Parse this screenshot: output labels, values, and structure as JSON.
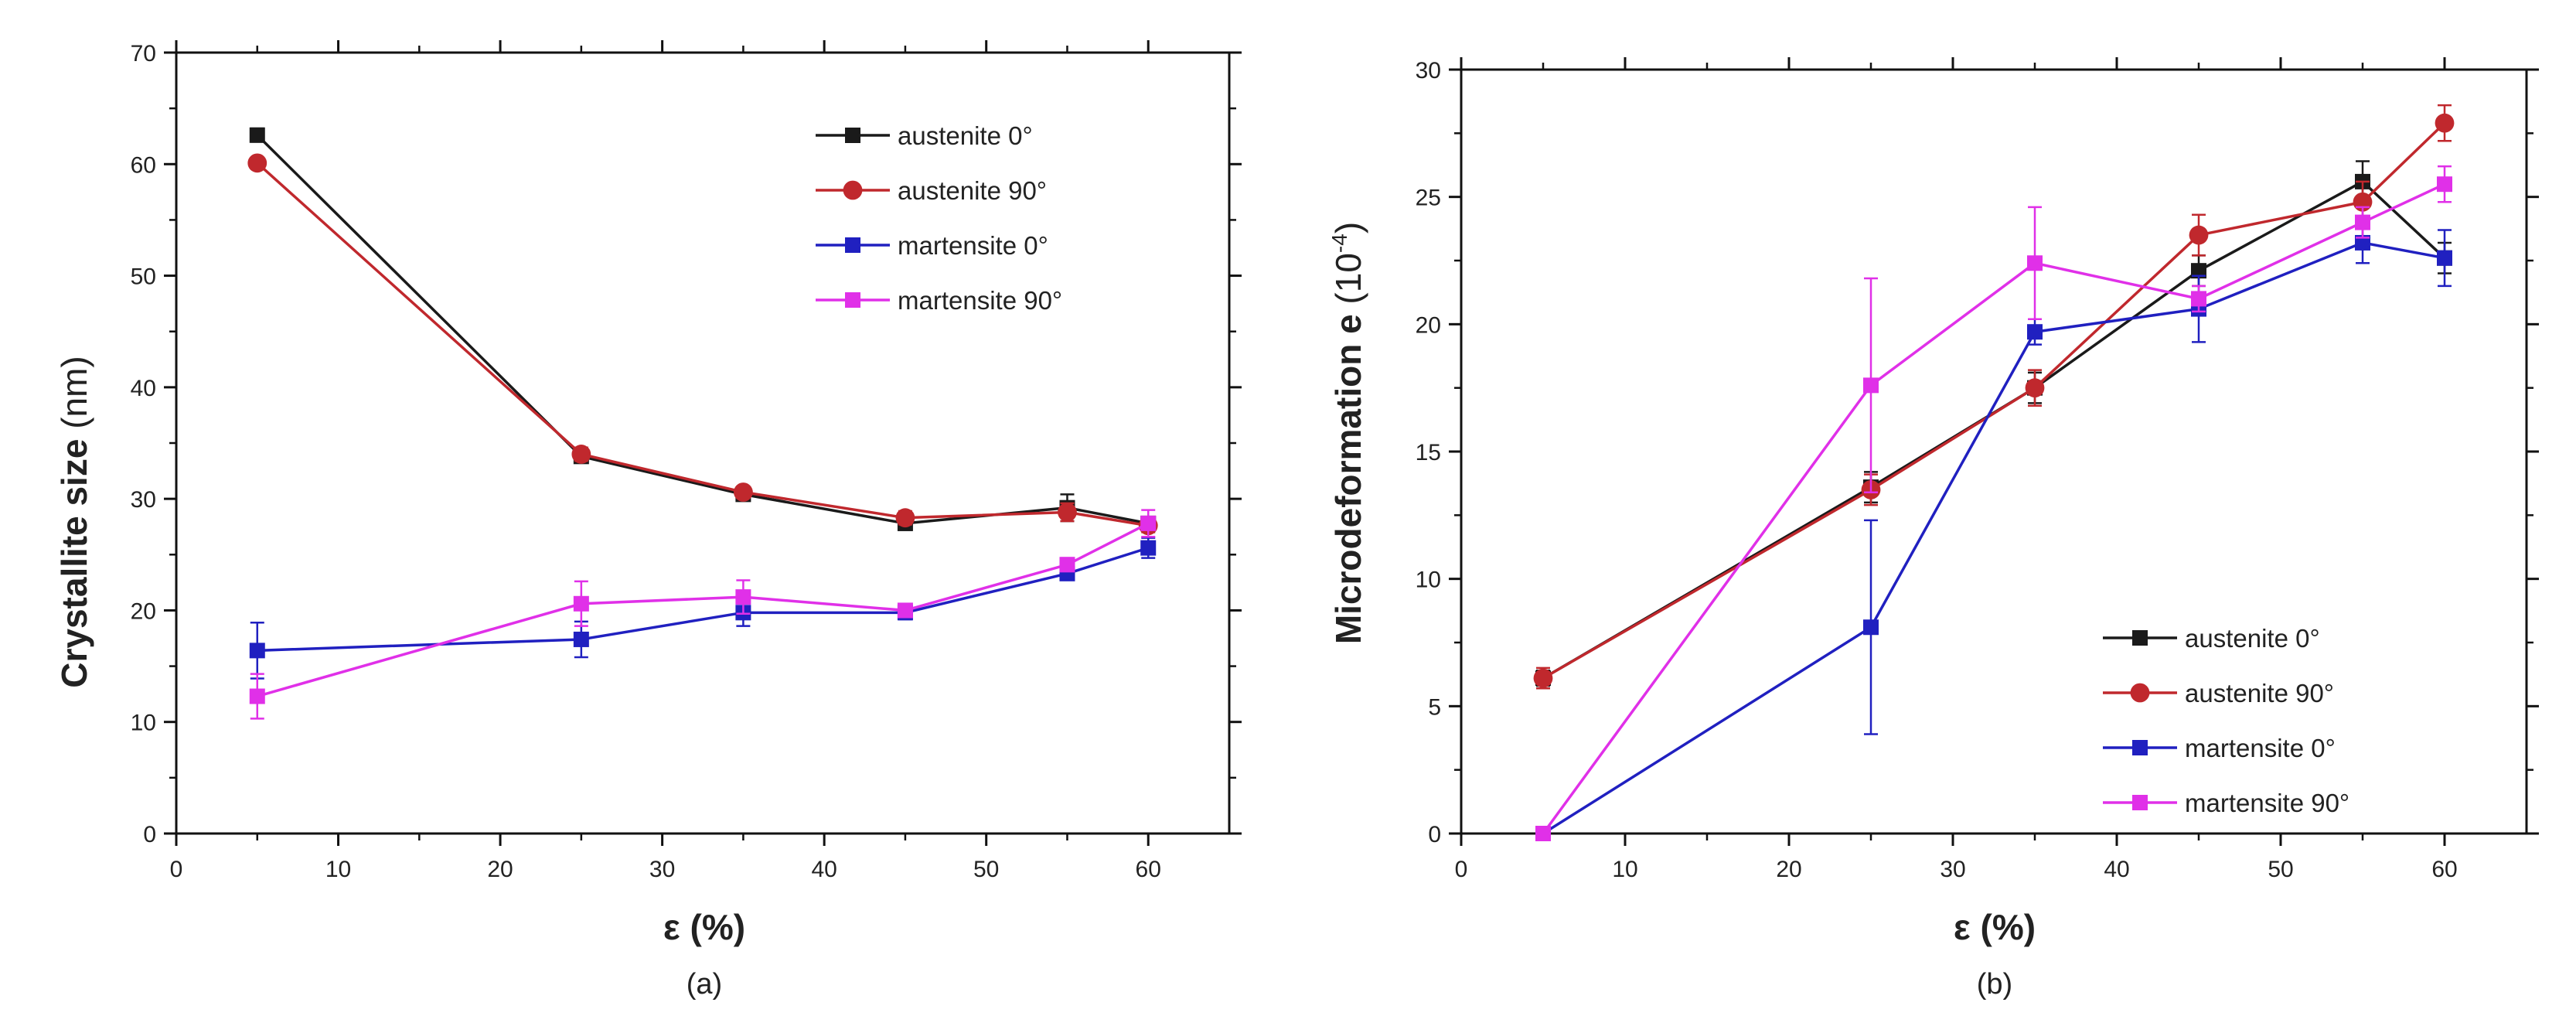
{
  "colors": {
    "austenite_0": "#1a1a1a",
    "austenite_90": "#c0282d",
    "martensite_0": "#2020c0",
    "martensite_90": "#e030e8"
  },
  "chart_data": [
    {
      "type": "line",
      "panel_label": "(a)",
      "xlabel": "ε (%)",
      "ylabel": "Crystallite size",
      "ylabel_unit": "(nm)",
      "xlim": [
        0,
        65
      ],
      "ylim": [
        0,
        70
      ],
      "xticks": [
        0,
        10,
        20,
        30,
        40,
        50,
        60
      ],
      "yticks": [
        0,
        10,
        20,
        30,
        40,
        50,
        60,
        70
      ],
      "legend_position": "top-right",
      "x": [
        5,
        25,
        35,
        45,
        55,
        60
      ],
      "series": [
        {
          "name": "austenite 0°",
          "marker": "square",
          "color_key": "austenite_0",
          "values": [
            62.6,
            33.8,
            30.4,
            27.8,
            29.2,
            27.8
          ],
          "errors": [
            0.6,
            0.5,
            0.5,
            0.6,
            1.2,
            0.6
          ]
        },
        {
          "name": "austenite 90°",
          "marker": "circle",
          "color_key": "austenite_90",
          "values": [
            60.1,
            34.0,
            30.6,
            28.3,
            28.8,
            27.6
          ],
          "errors": [
            0.4,
            0.6,
            0.5,
            0.6,
            0.8,
            0.6
          ]
        },
        {
          "name": "martensite 0°",
          "marker": "square",
          "color_key": "martensite_0",
          "values": [
            16.4,
            17.4,
            19.8,
            19.8,
            23.3,
            25.6
          ],
          "errors": [
            2.5,
            1.6,
            1.2,
            0.6,
            0.5,
            0.9
          ]
        },
        {
          "name": "martensite 90°",
          "marker": "square",
          "color_key": "martensite_90",
          "values": [
            12.3,
            20.6,
            21.2,
            20.0,
            24.1,
            27.8
          ],
          "errors": [
            2.0,
            2.0,
            1.5,
            0.6,
            0.6,
            1.2
          ]
        }
      ]
    },
    {
      "type": "line",
      "panel_label": "(b)",
      "xlabel": "ε (%)",
      "ylabel": "Microdeformation e",
      "ylabel_unit": "(10",
      "ylabel_unit_exp": "-4",
      "ylabel_unit_close": ")",
      "xlim": [
        0,
        65
      ],
      "ylim": [
        0,
        30
      ],
      "xticks": [
        0,
        10,
        20,
        30,
        40,
        50,
        60
      ],
      "yticks": [
        0,
        5,
        10,
        15,
        20,
        25,
        30
      ],
      "legend_position": "bottom-right",
      "x": [
        5,
        25,
        35,
        45,
        55,
        60
      ],
      "series": [
        {
          "name": "austenite 0°",
          "marker": "square",
          "color_key": "austenite_0",
          "values": [
            6.1,
            13.6,
            17.5,
            22.1,
            25.6,
            22.6
          ],
          "errors": [
            0.3,
            0.6,
            0.6,
            0.6,
            0.8,
            0.6
          ]
        },
        {
          "name": "austenite 90°",
          "marker": "circle",
          "color_key": "austenite_90",
          "values": [
            6.1,
            13.5,
            17.5,
            23.5,
            24.8,
            27.9
          ],
          "errors": [
            0.4,
            0.6,
            0.7,
            0.8,
            0.8,
            0.7
          ]
        },
        {
          "name": "martensite 0°",
          "marker": "square",
          "color_key": "martensite_0",
          "values": [
            0.0,
            8.1,
            19.7,
            20.6,
            23.2,
            22.6
          ],
          "errors": [
            0.1,
            4.2,
            0.5,
            1.3,
            0.8,
            1.1
          ]
        },
        {
          "name": "martensite 90°",
          "marker": "square",
          "color_key": "martensite_90",
          "values": [
            0.0,
            17.6,
            22.4,
            21.0,
            24.0,
            25.5
          ],
          "errors": [
            0.1,
            4.2,
            2.2,
            0.5,
            0.6,
            0.7
          ]
        }
      ]
    }
  ]
}
